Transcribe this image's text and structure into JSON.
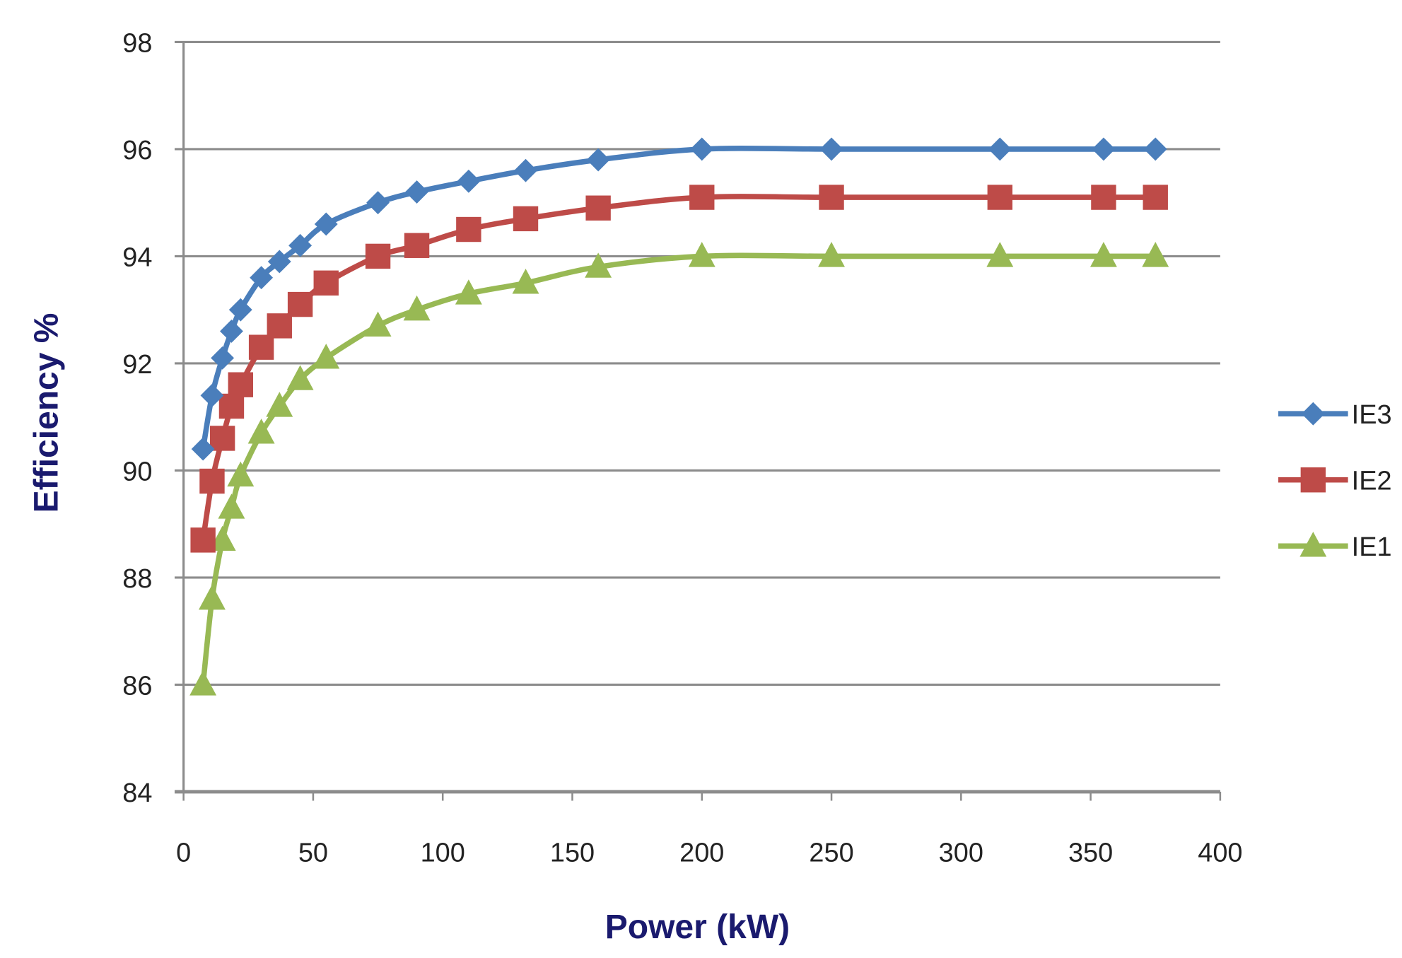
{
  "chart_data": {
    "type": "line",
    "title": "",
    "xlabel": "Power (kW)",
    "ylabel": "Efficiency %",
    "xlim": [
      0,
      400
    ],
    "ylim": [
      84,
      98
    ],
    "xticks": [
      "0",
      "50",
      "100",
      "150",
      "200",
      "250",
      "300",
      "350",
      "400"
    ],
    "yticks": [
      "84",
      "86",
      "88",
      "90",
      "92",
      "94",
      "96",
      "98"
    ],
    "grid": "horizontal",
    "legend": "right",
    "x": [
      7.5,
      11,
      15,
      18.5,
      22,
      30,
      37,
      45,
      55,
      75,
      90,
      110,
      132,
      160,
      200,
      250,
      315,
      355,
      375
    ],
    "series": [
      {
        "name": "IE3",
        "color": "#4a7ebb",
        "marker": "diamond",
        "values": [
          90.4,
          91.4,
          92.1,
          92.6,
          93.0,
          93.6,
          93.9,
          94.2,
          94.6,
          95.0,
          95.2,
          95.4,
          95.6,
          95.8,
          96.0,
          96.0,
          96.0,
          96.0,
          96.0
        ]
      },
      {
        "name": "IE2",
        "color": "#be4b48",
        "marker": "square",
        "values": [
          88.7,
          89.8,
          90.6,
          91.2,
          91.6,
          92.3,
          92.7,
          93.1,
          93.5,
          94.0,
          94.2,
          94.5,
          94.7,
          94.9,
          95.1,
          95.1,
          95.1,
          95.1,
          95.1
        ]
      },
      {
        "name": "IE1",
        "color": "#98b954",
        "marker": "triangle",
        "values": [
          86.0,
          87.6,
          88.7,
          89.3,
          89.9,
          90.7,
          91.2,
          91.7,
          92.1,
          92.7,
          93.0,
          93.3,
          93.5,
          93.8,
          94.0,
          94.0,
          94.0,
          94.0,
          94.0
        ]
      }
    ]
  }
}
